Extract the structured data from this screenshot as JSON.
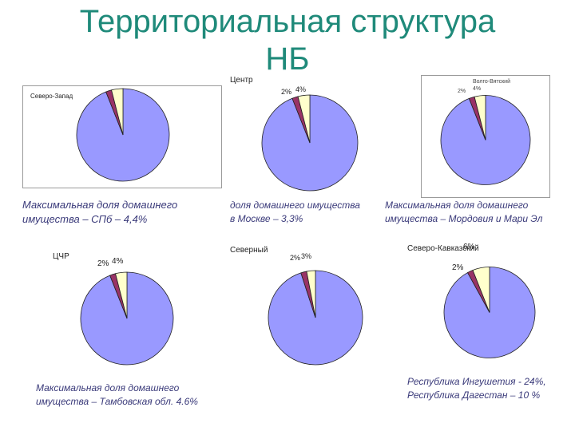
{
  "slide": {
    "title_line1": "Территориальная структура",
    "title_line2": "НБ"
  },
  "colors": {
    "main": "#9999ff",
    "slice_dark": "#993366",
    "slice_light": "#ffffcc",
    "title": "#1f8a7a",
    "caption": "#3a3a7a"
  },
  "captions": {
    "spb_line1": "Максимальная доля домашнего",
    "spb_line2": "имущества – СПб – 4,4%",
    "moscow_line1": "доля домашнего имущества",
    "moscow_line2": "в Москве – 3,3%",
    "mordovia_line1": "Максимальная доля домашнего",
    "mordovia_line2": "имущества – Мордовия и Мари Эл",
    "tambov_line1": "Максимальная доля домашнего",
    "tambov_line2": "имущества – Тамбовская обл. 4.6%",
    "caucasus_line1": "Республика Ингушетия - 24%,",
    "caucasus_line2": "Республика Дагестан – 10 %"
  },
  "chart_data": [
    {
      "type": "pie",
      "title": "Северо-Запад",
      "slices": [
        {
          "value": 94
        },
        {
          "value": 2
        },
        {
          "value": 4
        }
      ],
      "data_labels": []
    },
    {
      "type": "pie",
      "title": "Центр",
      "slices": [
        {
          "value": 94
        },
        {
          "value": 2
        },
        {
          "value": 4
        }
      ],
      "data_labels": [
        "2%",
        "4%"
      ]
    },
    {
      "type": "pie",
      "title": "Волго-Вятский",
      "slices": [
        {
          "value": 94
        },
        {
          "value": 2
        },
        {
          "value": 4
        }
      ],
      "data_labels": [
        "2%",
        "4%"
      ]
    },
    {
      "type": "pie",
      "title": "ЦЧР",
      "slices": [
        {
          "value": 94
        },
        {
          "value": 2
        },
        {
          "value": 4
        }
      ],
      "data_labels": [
        "2%",
        "4%"
      ]
    },
    {
      "type": "pie",
      "title": "Северный",
      "slices": [
        {
          "value": 95
        },
        {
          "value": 2
        },
        {
          "value": 3
        }
      ],
      "data_labels": [
        "2%",
        "3%"
      ]
    },
    {
      "type": "pie",
      "title": "Северо-Кавказский",
      "slices": [
        {
          "value": 92
        },
        {
          "value": 2
        },
        {
          "value": 6
        }
      ],
      "data_labels": [
        "2%",
        "6%"
      ]
    }
  ]
}
